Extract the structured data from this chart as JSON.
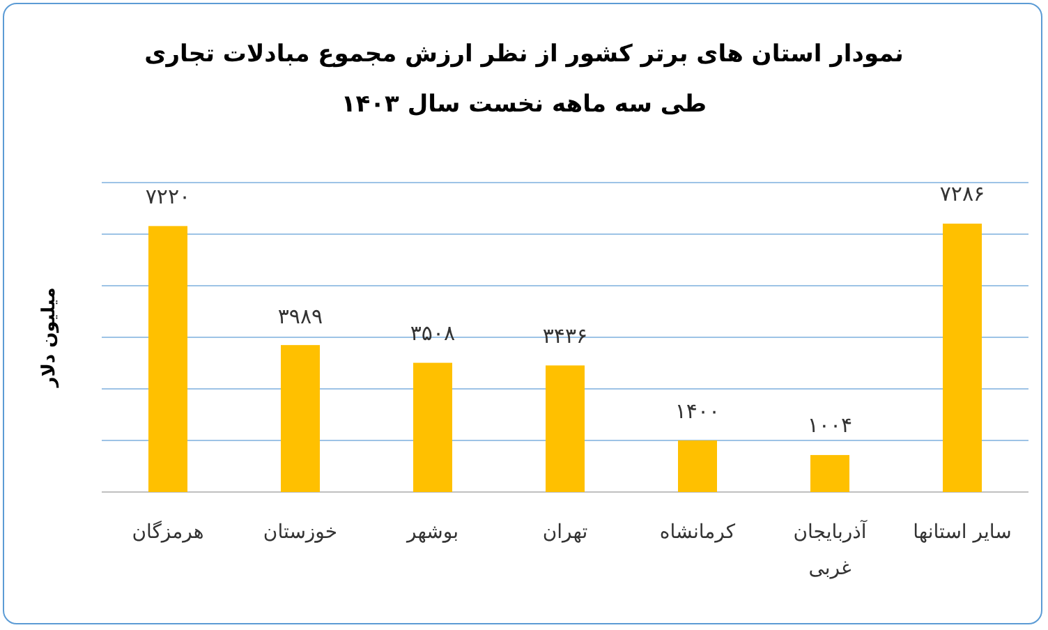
{
  "chart_data": {
    "type": "bar",
    "title": "نمودار استان های برتر کشور از نظر ارزش مجموع مبادلات تجاری",
    "subtitle": "طی سه ماهه نخست سال ۱۴۰۳",
    "ylabel": "میلیون دلار",
    "categories": [
      "هرمزگان",
      "خوزستان",
      "بوشهر",
      "تهران",
      "کرمانشاه",
      "آذربایجان غربی",
      "سایر استانها"
    ],
    "values": [
      7220,
      3989,
      3508,
      3436,
      1400,
      1004,
      7286
    ],
    "value_labels": [
      "۷۲۲۰",
      "۳۹۸۹",
      "۳۵۰۸",
      "۳۴۳۶",
      "۱۴۰۰",
      "۱۰۰۴",
      "۷۲۸۶"
    ],
    "color": "#ffc000",
    "ylim": [
      0,
      8400
    ],
    "yticks": [
      {
        "value": 0,
        "label": null
      },
      {
        "value": 1400,
        "label": null
      },
      {
        "value": 2800,
        "label": null
      },
      {
        "value": 4200,
        "label": null
      },
      {
        "value": 5600,
        "label": null
      },
      {
        "value": 7000,
        "label": null
      },
      {
        "value": 8400,
        "label": null
      }
    ],
    "grid": "y",
    "tick_labels": "x"
  }
}
